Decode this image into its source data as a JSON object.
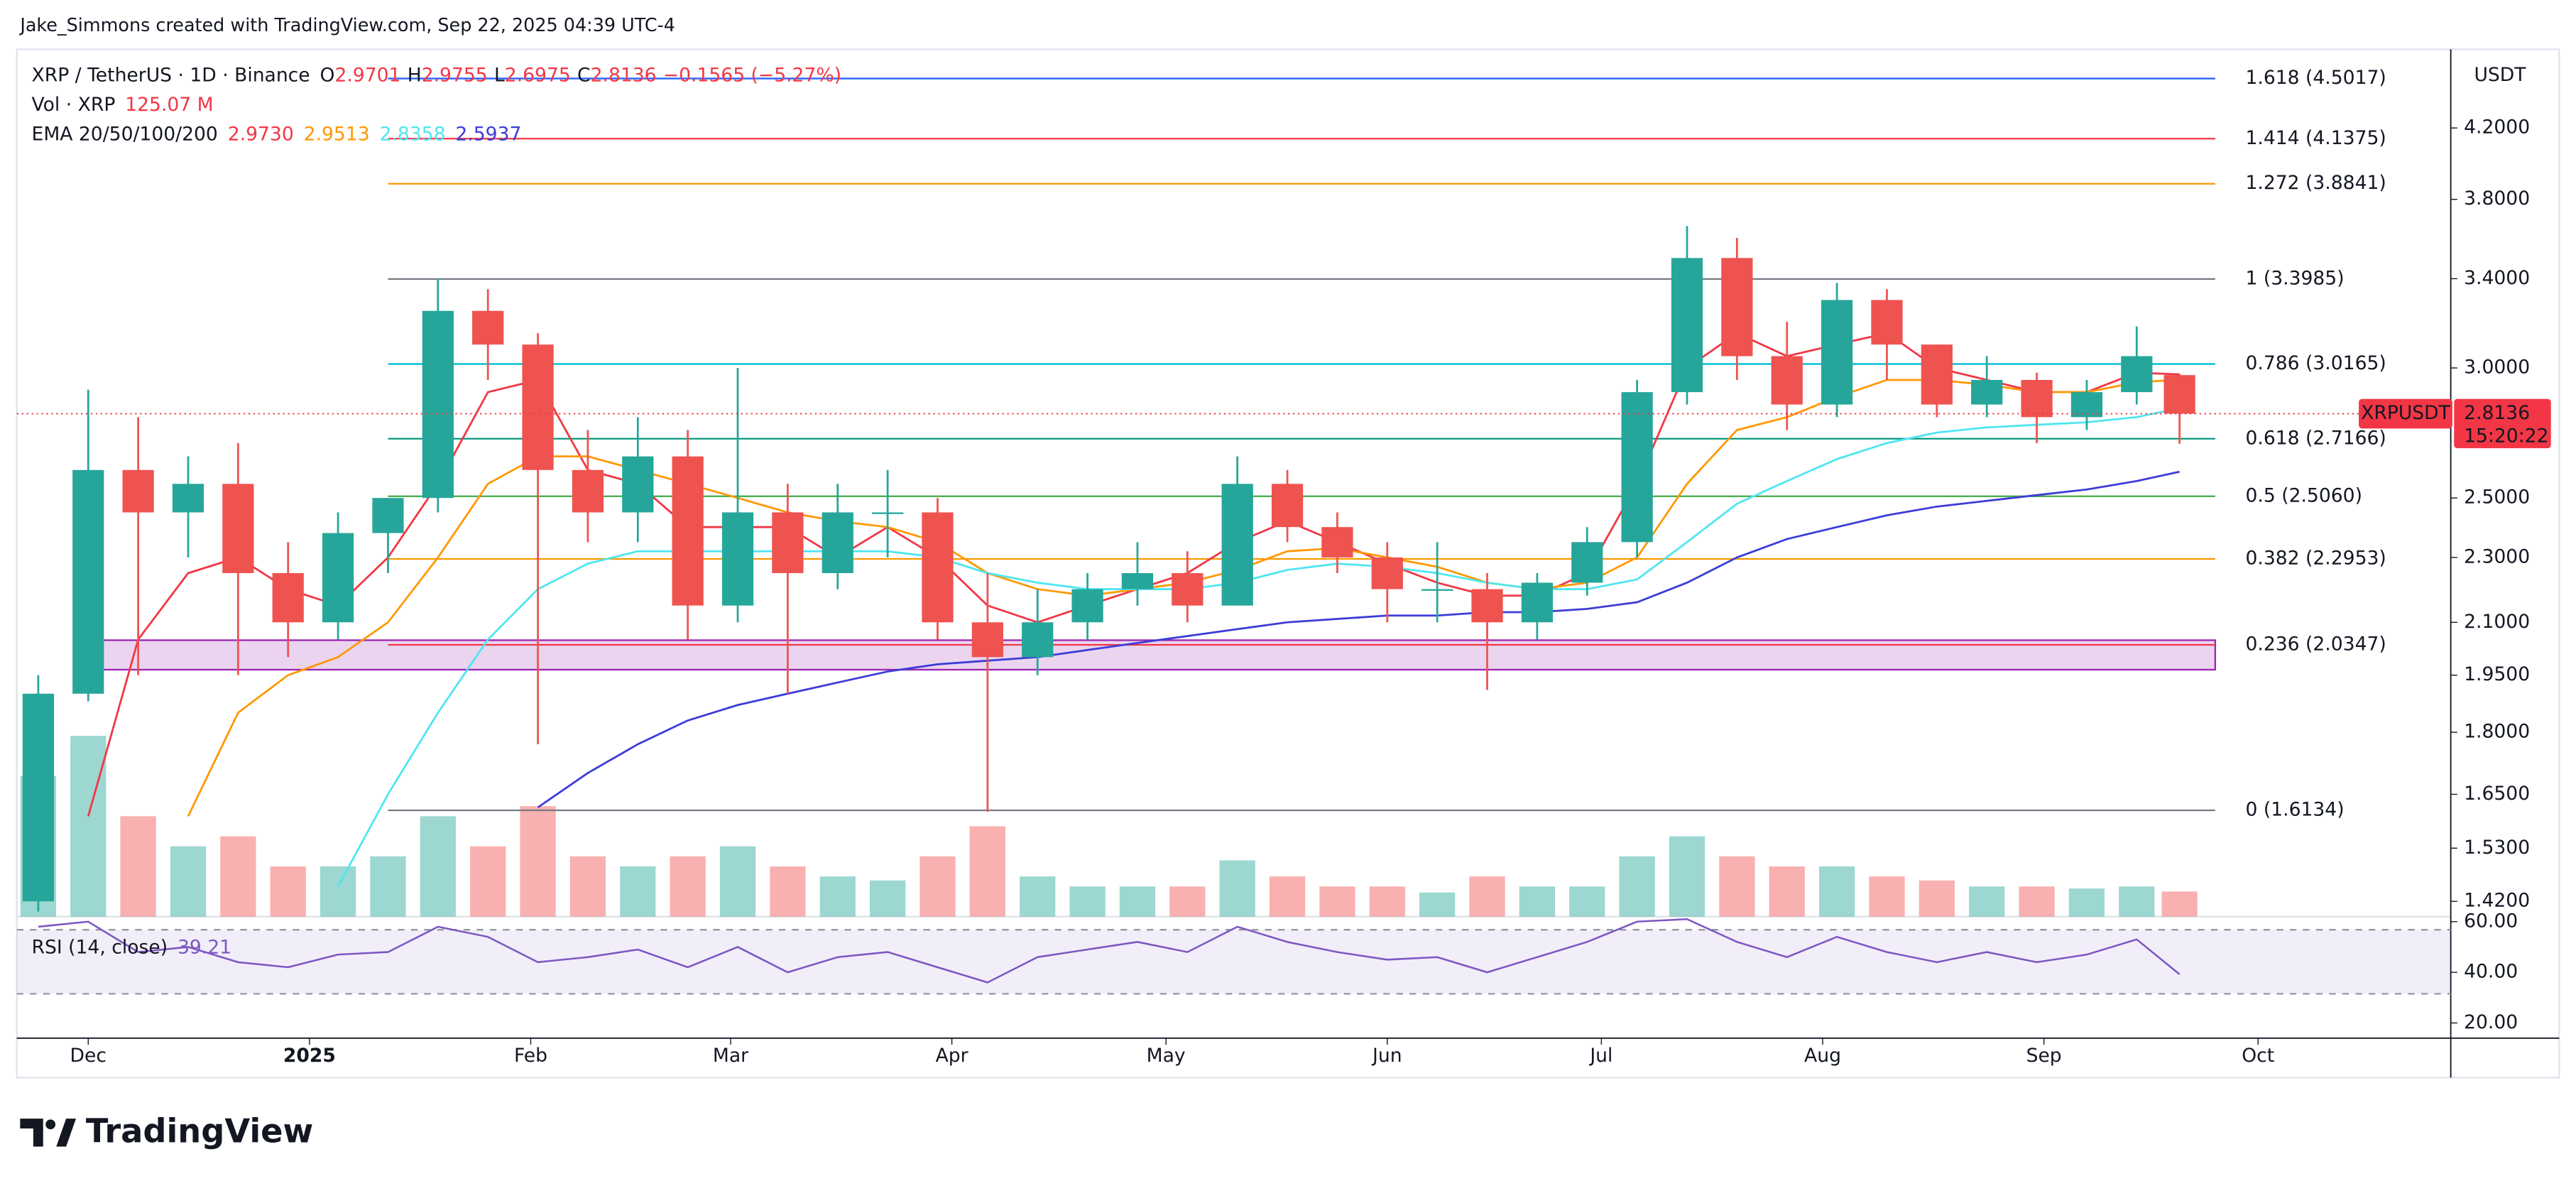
{
  "header": {
    "attribution": "Jake_Simmons created with TradingView.com, Sep 22, 2025 04:39 UTC-4"
  },
  "chart_data": {
    "type": "candlestick",
    "legend": {
      "symbol": "XRP / TetherUS · 1D · Binance",
      "o_label": "O",
      "o": 2.9701,
      "h_label": "H",
      "h": 2.9755,
      "l_label": "L",
      "l": 2.6975,
      "c_label": "C",
      "c": 2.8136,
      "change": "−0.1565 (−5.27%)",
      "vol_label": "Vol · XRP",
      "vol_value": "125.07 M",
      "ema_label": "EMA 20/50/100/200"
    },
    "currency": "USDT",
    "x": [
      -7,
      0,
      7,
      14,
      21,
      28,
      35,
      42,
      49,
      56,
      63,
      70,
      77,
      84,
      91,
      98,
      105,
      112,
      119,
      126,
      133,
      140,
      147,
      154,
      161,
      168,
      175,
      182,
      189,
      196,
      203,
      210,
      217,
      224,
      231,
      238,
      245,
      252,
      259,
      266,
      273,
      280,
      287,
      293
    ],
    "open": [
      1.42,
      1.9,
      2.6,
      2.45,
      2.55,
      2.25,
      2.1,
      2.38,
      2.5,
      3.25,
      3.1,
      2.6,
      2.45,
      2.65,
      2.15,
      2.45,
      2.25,
      2.45,
      2.45,
      2.1,
      2.0,
      2.1,
      2.2,
      2.25,
      2.15,
      2.55,
      2.4,
      2.3,
      2.2,
      2.2,
      2.1,
      2.22,
      2.35,
      2.9,
      3.5,
      3.05,
      2.85,
      3.3,
      3.1,
      2.85,
      2.95,
      2.8,
      2.9,
      2.9701
    ],
    "high": [
      1.95,
      2.91,
      2.8,
      2.65,
      2.7,
      2.35,
      2.45,
      2.5,
      3.4,
      3.35,
      3.15,
      2.75,
      2.8,
      2.75,
      3.0,
      2.55,
      2.55,
      2.6,
      2.5,
      2.25,
      2.2,
      2.25,
      2.35,
      2.32,
      2.65,
      2.6,
      2.45,
      2.35,
      2.35,
      2.25,
      2.25,
      2.4,
      2.95,
      3.66,
      3.6,
      3.2,
      3.38,
      3.35,
      3.1,
      3.05,
      2.98,
      2.95,
      3.18,
      2.9755
    ],
    "low": [
      1.4,
      1.88,
      1.95,
      2.3,
      1.95,
      2.0,
      2.05,
      2.25,
      2.45,
      2.95,
      1.77,
      2.35,
      2.35,
      2.05,
      2.1,
      1.9,
      2.2,
      2.3,
      2.05,
      1.61,
      1.95,
      2.05,
      2.15,
      2.1,
      2.15,
      2.35,
      2.25,
      2.1,
      2.1,
      1.91,
      2.05,
      2.18,
      2.3,
      2.85,
      2.95,
      2.75,
      2.8,
      2.95,
      2.8,
      2.8,
      2.7,
      2.75,
      2.85,
      2.6975
    ],
    "close": [
      1.9,
      2.6,
      2.45,
      2.55,
      2.25,
      2.1,
      2.38,
      2.5,
      3.25,
      3.1,
      2.6,
      2.45,
      2.65,
      2.15,
      2.45,
      2.25,
      2.45,
      2.45,
      2.1,
      2.0,
      2.1,
      2.2,
      2.25,
      2.15,
      2.55,
      2.4,
      2.3,
      2.2,
      2.2,
      2.1,
      2.22,
      2.35,
      2.9,
      3.5,
      3.05,
      2.85,
      3.3,
      3.1,
      2.85,
      2.95,
      2.8,
      2.9,
      3.05,
      2.8136
    ],
    "up_color": "#26a69a",
    "down_color": "#ef5350",
    "volume": {
      "values": [
        700,
        900,
        500,
        350,
        400,
        250,
        250,
        300,
        500,
        350,
        550,
        300,
        250,
        300,
        350,
        250,
        200,
        180,
        300,
        450,
        200,
        150,
        150,
        150,
        280,
        200,
        150,
        150,
        120,
        200,
        150,
        150,
        300,
        400,
        300,
        250,
        250,
        200,
        180,
        150,
        150,
        140,
        150,
        125.07
      ]
    },
    "emas": [
      {
        "color": "#f23645",
        "value_label": "2.9730",
        "values": [
          null,
          1.6,
          2.05,
          2.25,
          2.3,
          2.2,
          2.15,
          2.3,
          2.55,
          2.9,
          2.95,
          2.6,
          2.55,
          2.4,
          2.4,
          2.4,
          2.3,
          2.4,
          2.3,
          2.15,
          2.1,
          2.15,
          2.2,
          2.25,
          2.35,
          2.42,
          2.35,
          2.28,
          2.22,
          2.18,
          2.18,
          2.25,
          2.55,
          3.0,
          3.15,
          3.05,
          3.1,
          3.15,
          3.0,
          2.95,
          2.9,
          2.9,
          2.98,
          2.973
        ]
      },
      {
        "color": "#ff9800",
        "value_label": "2.9513",
        "values": [
          null,
          null,
          null,
          1.6,
          1.85,
          1.95,
          2.0,
          2.1,
          2.3,
          2.55,
          2.65,
          2.65,
          2.6,
          2.55,
          2.5,
          2.45,
          2.42,
          2.4,
          2.35,
          2.25,
          2.2,
          2.18,
          2.2,
          2.22,
          2.26,
          2.32,
          2.33,
          2.3,
          2.27,
          2.22,
          2.2,
          2.22,
          2.3,
          2.55,
          2.75,
          2.8,
          2.88,
          2.95,
          2.95,
          2.93,
          2.9,
          2.9,
          2.94,
          2.9513
        ]
      },
      {
        "color": "#4ee6f0",
        "value_label": "2.8358",
        "values": [
          null,
          null,
          null,
          null,
          null,
          null,
          1.45,
          1.65,
          1.85,
          2.05,
          2.2,
          2.28,
          2.32,
          2.32,
          2.32,
          2.32,
          2.32,
          2.32,
          2.3,
          2.25,
          2.22,
          2.2,
          2.2,
          2.2,
          2.22,
          2.26,
          2.28,
          2.27,
          2.25,
          2.22,
          2.2,
          2.2,
          2.23,
          2.35,
          2.48,
          2.56,
          2.64,
          2.7,
          2.74,
          2.76,
          2.77,
          2.78,
          2.8,
          2.8358
        ]
      },
      {
        "color": "#3c3cd8",
        "value_label": "2.5937",
        "values": [
          null,
          null,
          null,
          null,
          null,
          null,
          null,
          null,
          null,
          null,
          1.62,
          1.7,
          1.77,
          1.83,
          1.87,
          1.9,
          1.93,
          1.96,
          1.98,
          1.99,
          2.0,
          2.02,
          2.04,
          2.06,
          2.08,
          2.1,
          2.11,
          2.12,
          2.12,
          2.13,
          2.13,
          2.14,
          2.16,
          2.22,
          2.3,
          2.36,
          2.4,
          2.44,
          2.47,
          2.49,
          2.51,
          2.53,
          2.56,
          2.5937
        ]
      }
    ],
    "fib_x": [
      42,
      298
    ],
    "fib_levels": [
      {
        "label": "1.618 (4.5017)",
        "value": 4.5017,
        "color": "#2962ff"
      },
      {
        "label": "1.414 (4.1375)",
        "value": 4.1375,
        "color": "#f23645"
      },
      {
        "label": "1.272 (3.8841)",
        "value": 3.8841,
        "color": "#ff9800"
      },
      {
        "label": "1 (3.3985)",
        "value": 3.3985,
        "color": "#787b86"
      },
      {
        "label": "0.786 (3.0165)",
        "value": 3.0165,
        "color": "#00bcd4"
      },
      {
        "label": "0.618 (2.7166)",
        "value": 2.7166,
        "color": "#089981"
      },
      {
        "label": "0.5 (2.5060)",
        "value": 2.506,
        "color": "#4caf50"
      },
      {
        "label": "0.382 (2.2953)",
        "value": 2.2953,
        "color": "#ff9800"
      },
      {
        "label": "0.236 (2.0347)",
        "value": 2.0347,
        "color": "#f23645"
      },
      {
        "label": "0 (1.6134)",
        "value": 1.6134,
        "color": "#787b86"
      }
    ],
    "zone": {
      "x": [
        -1,
        298
      ],
      "y": [
        1.965,
        2.048
      ],
      "color": "#9c27b0"
    },
    "price_tag": {
      "symbol": "XRPUSDT",
      "price": "2.8136",
      "countdown": "15:20:22"
    },
    "log_scale": true,
    "ylim": [
      1.39,
      4.69
    ],
    "yticks": [
      {
        "value": 4.2,
        "label": "4.2000"
      },
      {
        "value": 3.8,
        "label": "3.8000"
      },
      {
        "value": 3.4,
        "label": "3.4000"
      },
      {
        "value": 3.0,
        "label": "3.0000"
      },
      {
        "value": 2.5,
        "label": "2.5000"
      },
      {
        "value": 2.3,
        "label": "2.3000"
      },
      {
        "value": 2.1,
        "label": "2.1000"
      },
      {
        "value": 1.95,
        "label": "1.9500"
      },
      {
        "value": 1.8,
        "label": "1.8000"
      },
      {
        "value": 1.65,
        "label": "1.6500"
      },
      {
        "value": 1.53,
        "label": "1.5300"
      },
      {
        "value": 1.42,
        "label": "1.4200"
      }
    ],
    "xlim": [
      -10,
      331
    ],
    "xticks": [
      {
        "value": 0,
        "label": "Dec"
      },
      {
        "value": 31,
        "label": "2025"
      },
      {
        "value": 62,
        "label": "Feb"
      },
      {
        "value": 90,
        "label": "Mar"
      },
      {
        "value": 121,
        "label": "Apr"
      },
      {
        "value": 151,
        "label": "May"
      },
      {
        "value": 182,
        "label": "Jun"
      },
      {
        "value": 212,
        "label": "Jul"
      },
      {
        "value": 243,
        "label": "Aug"
      },
      {
        "value": 274,
        "label": "Sep"
      },
      {
        "value": 304,
        "label": "Oct"
      }
    ],
    "rsi": {
      "label": "RSI (14, close)",
      "color": "#7e57c2",
      "values": [
        58,
        60,
        48,
        50,
        44,
        42,
        47,
        48,
        58,
        54,
        44,
        46,
        49,
        42,
        50,
        40,
        46,
        48,
        42,
        36,
        46,
        49,
        52,
        48,
        58,
        52,
        48,
        45,
        46,
        40,
        46,
        52,
        60,
        61,
        52,
        46,
        54,
        48,
        44,
        48,
        44,
        47,
        53,
        39.21
      ],
      "ylim": [
        14,
        62
      ],
      "yticks": [
        {
          "value": 60,
          "label": "60.00"
        },
        {
          "value": 40,
          "label": "40.00"
        },
        {
          "value": 20,
          "label": "20.00"
        }
      ]
    }
  },
  "footer": {
    "brand": "TradingView"
  }
}
